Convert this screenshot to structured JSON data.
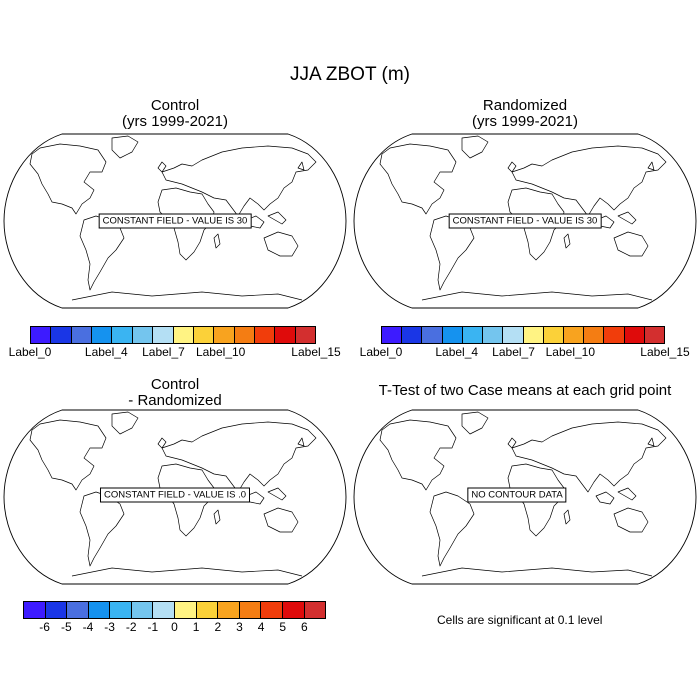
{
  "title": "JJA ZBOT (m)",
  "colors": [
    "#3d1bff",
    "#1a36e6",
    "#4a6fe0",
    "#1592ef",
    "#3ab4f2",
    "#74c5ee",
    "#b4dff4",
    "#fff383",
    "#fbd139",
    "#f8a31f",
    "#f47d13",
    "#f13d0b",
    "#df0b0b",
    "#d32f2f"
  ],
  "panels": [
    {
      "title_line1": "Control",
      "title_line2": "(yrs 1999-2021)",
      "message": "CONSTANT FIELD - VALUE IS 30"
    },
    {
      "title_line1": "Randomized",
      "title_line2": "(yrs 1999-2021)",
      "message": "CONSTANT FIELD - VALUE IS 30"
    },
    {
      "title_line1": "Control",
      "title_line2": "- Randomized",
      "message": "CONSTANT FIELD - VALUE IS .0"
    },
    {
      "title_line1": "T-Test of two Case means at each grid point",
      "title_line2": "",
      "message": "NO CONTOUR DATA"
    }
  ],
  "colorbar_top_left": {
    "labels": [
      "Label_0",
      "Label_4",
      "Label_7",
      "Label_10",
      "Label_15"
    ],
    "label_index": [
      0,
      4,
      7,
      10,
      15
    ],
    "count": 16
  },
  "colorbar_top_right": {
    "labels": [
      "Label_0",
      "Label_4",
      "Label_7",
      "Label_10",
      "Label_15"
    ],
    "label_index": [
      0,
      4,
      7,
      10,
      15
    ],
    "count": 16
  },
  "colorbar_bottom": {
    "labels": [
      "-6",
      "-5",
      "-4",
      "-3",
      "-2",
      "-1",
      "0",
      "1",
      "2",
      "3",
      "4",
      "5",
      "6"
    ],
    "count": 13
  },
  "significance_note": "Cells are significant at 0.1 level"
}
